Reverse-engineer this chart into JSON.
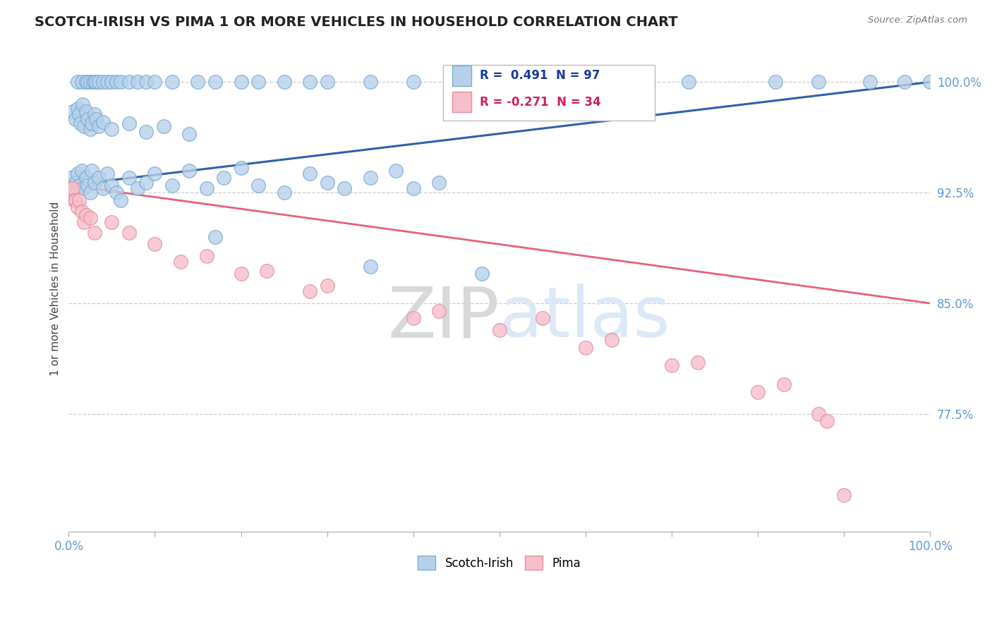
{
  "title": "SCOTCH-IRISH VS PIMA 1 OR MORE VEHICLES IN HOUSEHOLD CORRELATION CHART",
  "source_text": "Source: ZipAtlas.com",
  "ylabel": "1 or more Vehicles in Household",
  "x_min": 0.0,
  "x_max": 1.0,
  "y_min": 0.695,
  "y_max": 1.025,
  "y_ticks": [
    0.775,
    0.85,
    0.925,
    1.0
  ],
  "y_tick_labels": [
    "77.5%",
    "85.0%",
    "92.5%",
    "100.0%"
  ],
  "scotch_irish_R": 0.491,
  "scotch_irish_N": 97,
  "pima_R": -0.271,
  "pima_N": 34,
  "scotch_irish_color": "#b8d0ea",
  "scotch_irish_edge": "#7aafd4",
  "pima_color": "#f5bfcc",
  "pima_edge": "#e8909f",
  "trend_scotch_color": "#3060a8",
  "trend_pima_color": "#e8607a",
  "watermark_color": "#dce8f5",
  "watermark_color2": "#c8d8e8",
  "background_color": "#ffffff",
  "si_trend_x0": 0.0,
  "si_trend_y0": 0.93,
  "si_trend_x1": 1.0,
  "si_trend_y1": 1.0,
  "pima_trend_x0": 0.0,
  "pima_trend_y0": 0.93,
  "pima_trend_x1": 1.0,
  "pima_trend_y1": 0.85
}
